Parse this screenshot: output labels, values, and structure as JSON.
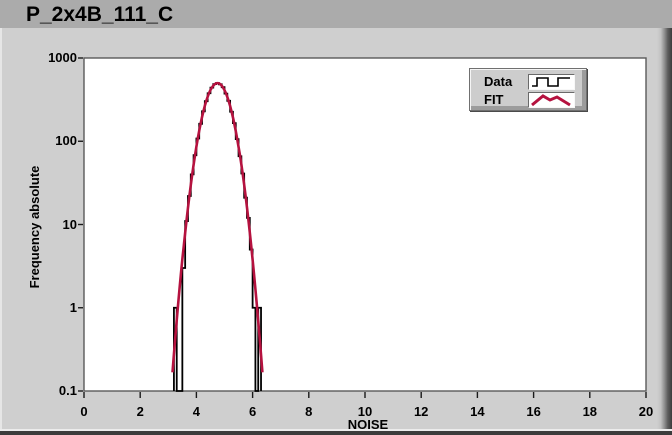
{
  "window": {
    "title": "P_2x4B_111_C"
  },
  "legend": {
    "items": [
      {
        "label": "Data",
        "icon": "step-line-icon",
        "color": "#000000"
      },
      {
        "label": "FIT",
        "icon": "zigzag-line-icon",
        "color": "#B5123F"
      }
    ]
  },
  "chart_data": {
    "type": "bar",
    "subtype": "histogram-with-fit",
    "title": "P_2x4B_111_C",
    "xlabel": "NOISE",
    "ylabel": "Frequency absolute",
    "xlim": [
      0,
      20
    ],
    "ylim": [
      0.1,
      1000
    ],
    "y_scale": "log",
    "grid": false,
    "x_ticks": [
      0,
      2,
      4,
      6,
      8,
      10,
      12,
      14,
      16,
      18,
      20
    ],
    "y_ticks": [
      1000,
      100,
      10,
      1,
      0.1
    ],
    "legend_position": "top-right",
    "bin_width": 0.1,
    "histogram": {
      "name": "Data",
      "color": "#000000",
      "bin_start": 3.2,
      "counts": [
        1,
        0,
        0,
        3,
        11,
        22,
        40,
        68,
        108,
        162,
        229,
        303,
        377,
        441,
        485,
        500,
        483,
        446,
        373,
        306,
        226,
        165,
        106,
        66,
        41,
        21,
        12,
        5,
        1,
        0,
        1
      ]
    },
    "fit": {
      "name": "FIT",
      "color": "#B5123F",
      "model": "gaussian",
      "amplitude": 500,
      "mean": 4.75,
      "sigma": 0.4,
      "x_range": [
        3.15,
        6.35
      ]
    }
  }
}
